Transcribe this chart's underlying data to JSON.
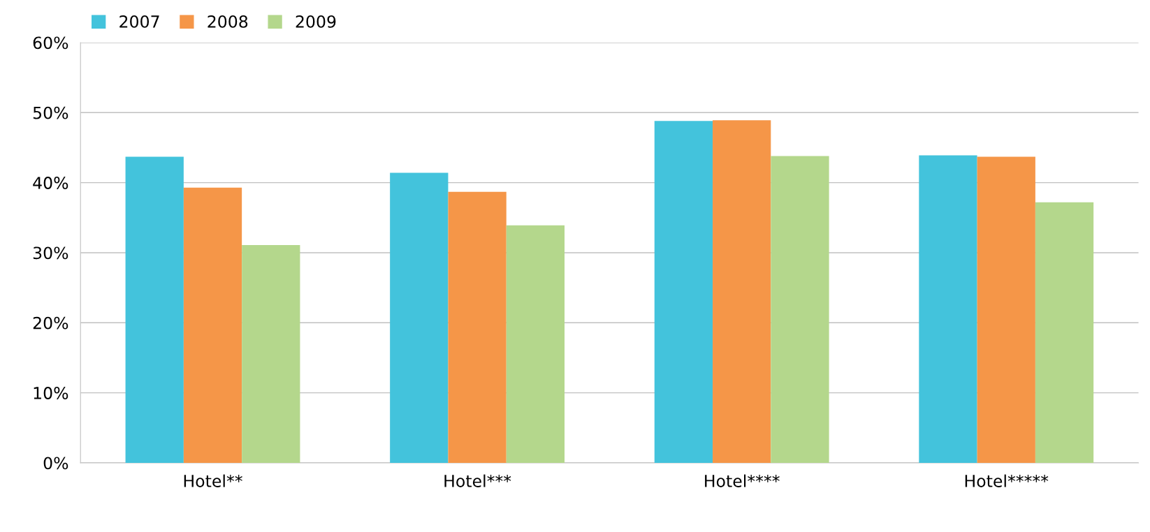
{
  "chart_data": {
    "type": "bar",
    "categories": [
      "Hotel**",
      "Hotel***",
      "Hotel****",
      "Hotel*****"
    ],
    "series": [
      {
        "name": "2007",
        "color": "#43c3dc",
        "values": [
          43.7,
          41.4,
          48.8,
          43.9
        ]
      },
      {
        "name": "2008",
        "color": "#f59648",
        "values": [
          39.3,
          38.7,
          48.9,
          43.7
        ]
      },
      {
        "name": "2009",
        "color": "#b4d78c",
        "values": [
          31.1,
          33.9,
          43.8,
          37.2
        ]
      }
    ],
    "ylim": [
      0,
      60
    ],
    "yticks": [
      {
        "value": 0,
        "label": "0%"
      },
      {
        "value": 10,
        "label": "10%"
      },
      {
        "value": 20,
        "label": "20%"
      },
      {
        "value": 30,
        "label": "30%"
      },
      {
        "value": 40,
        "label": "40%"
      },
      {
        "value": 50,
        "label": "50%"
      },
      {
        "value": 60,
        "label": "60%"
      }
    ],
    "grid": "y",
    "legend": "top left"
  }
}
